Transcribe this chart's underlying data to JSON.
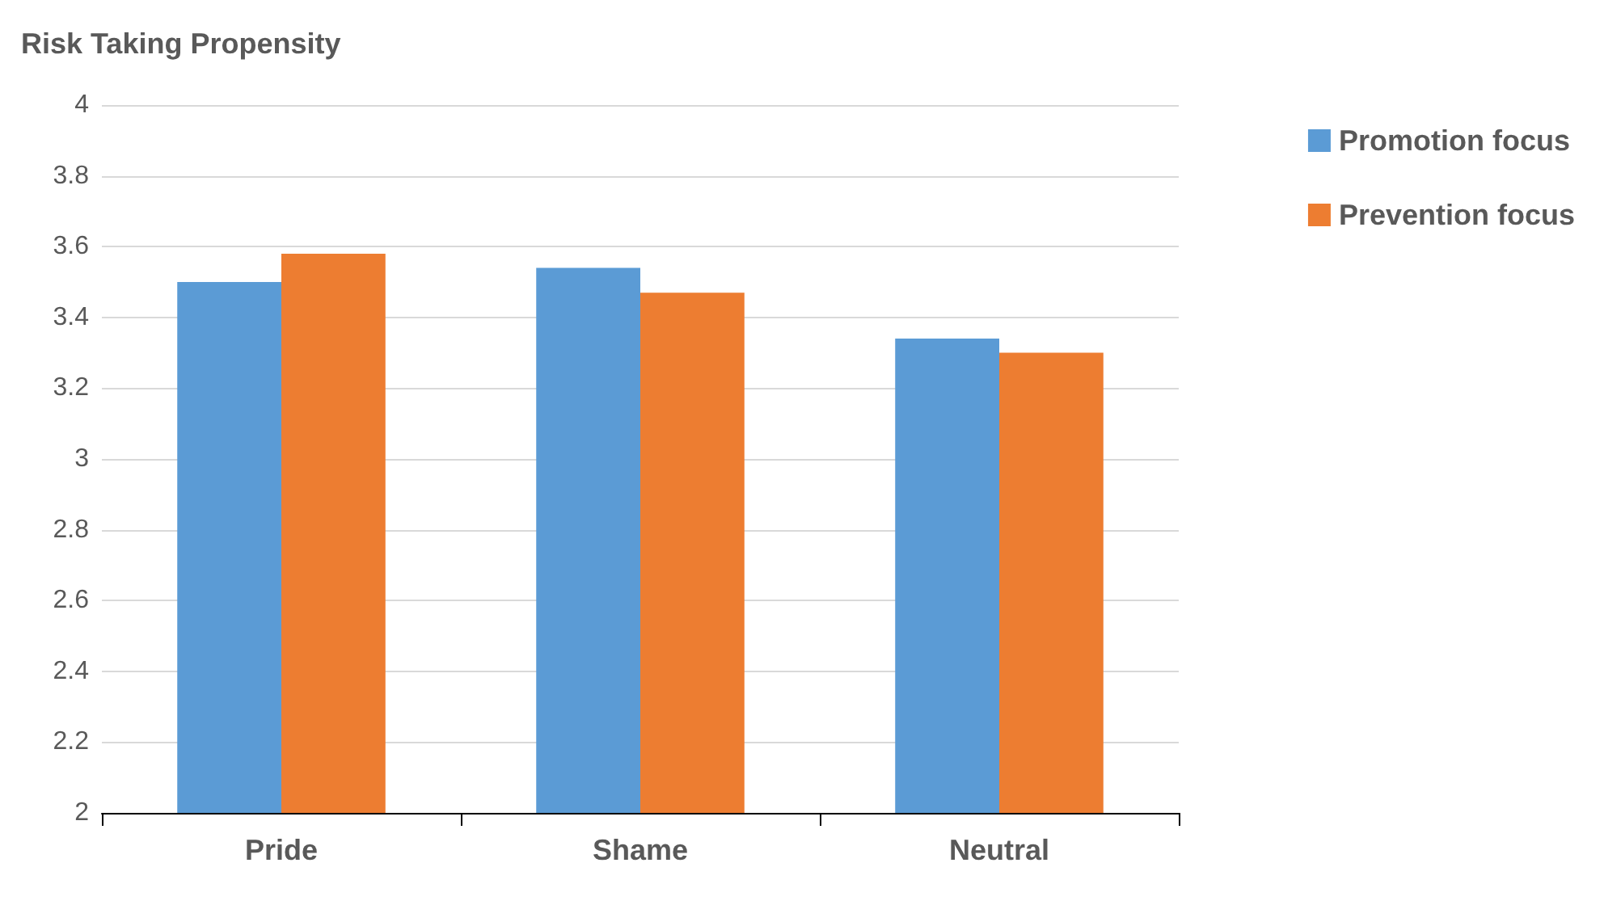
{
  "chart_data": {
    "type": "bar",
    "title": "Risk Taking Propensity",
    "categories": [
      "Pride",
      "Shame",
      "Neutral"
    ],
    "series": [
      {
        "name": "Promotion focus",
        "color": "#5b9bd5",
        "values": [
          3.5,
          3.54,
          3.34
        ]
      },
      {
        "name": "Prevention focus",
        "color": "#ed7d31",
        "values": [
          3.58,
          3.47,
          3.3
        ]
      }
    ],
    "ylim": [
      2,
      4
    ],
    "yticks": [
      2,
      2.2,
      2.4,
      2.6,
      2.8,
      3,
      3.2,
      3.4,
      3.6,
      3.8,
      4
    ],
    "grid": "y",
    "legend": "top right"
  }
}
